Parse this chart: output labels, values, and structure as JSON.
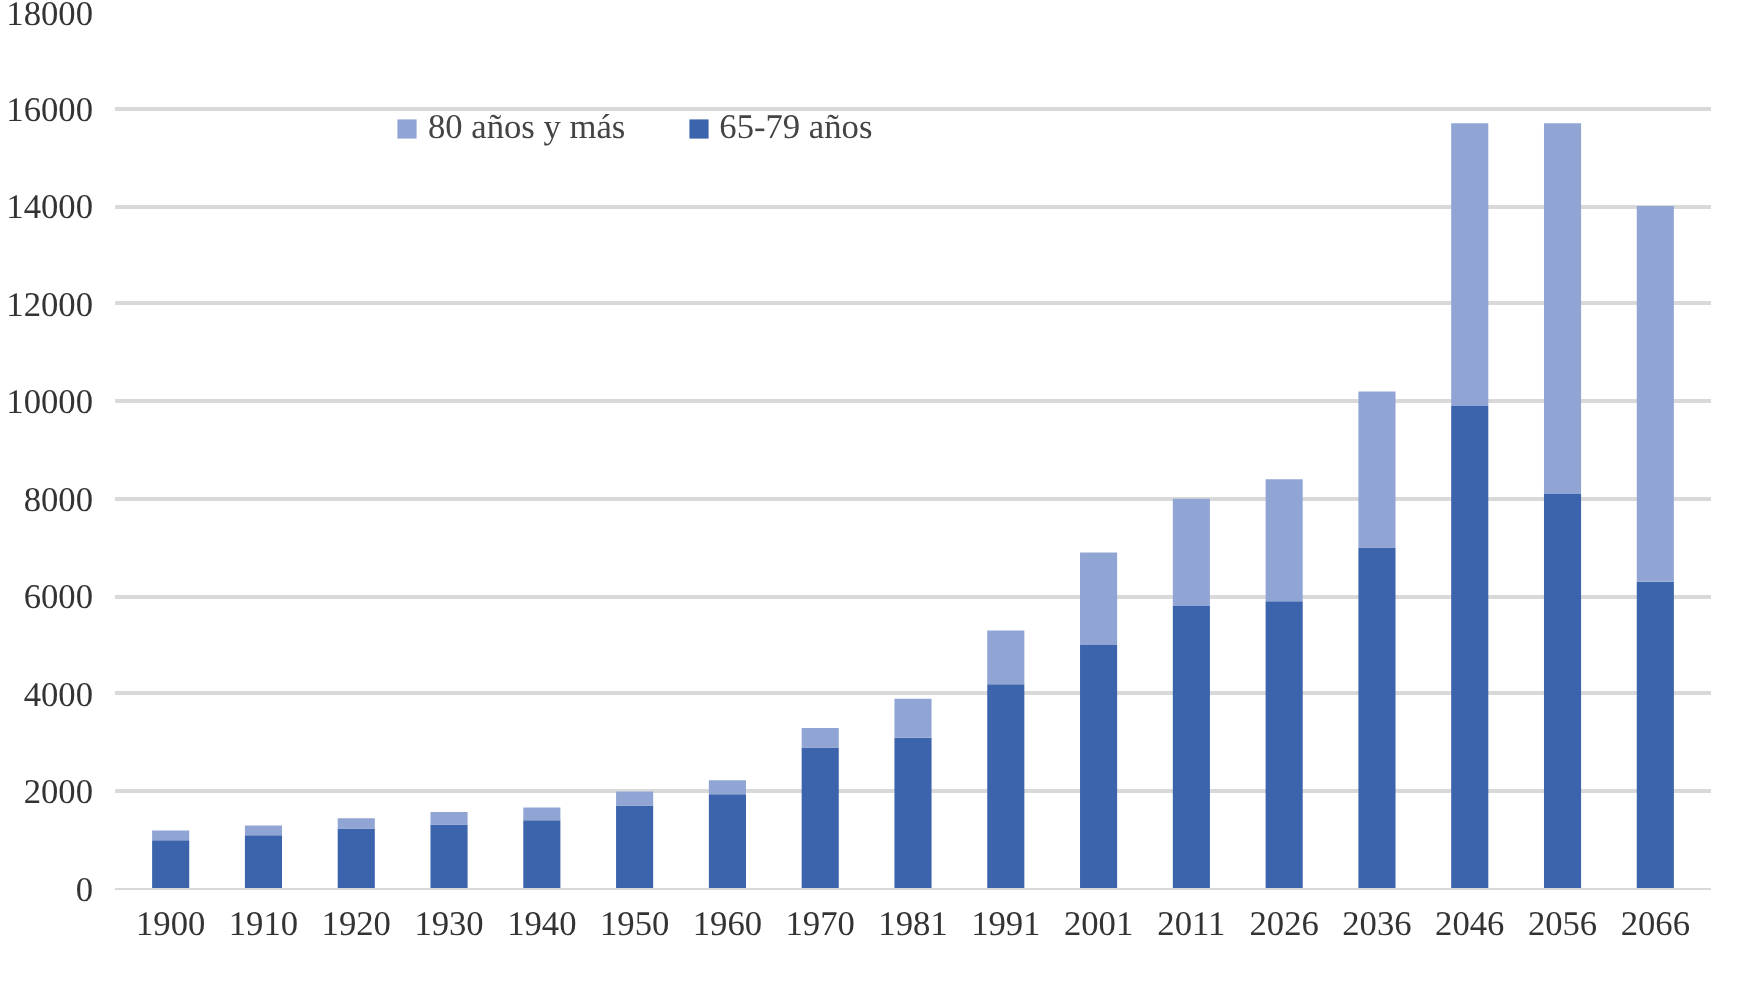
{
  "chart_data": {
    "type": "bar",
    "stacked": true,
    "categories": [
      "1900",
      "1910",
      "1920",
      "1930",
      "1940",
      "1950",
      "1960",
      "1970",
      "1981",
      "1991",
      "2001",
      "2011",
      "2026",
      "2036",
      "2046",
      "2056",
      "2066"
    ],
    "series": [
      {
        "name": "65-79 años",
        "color": "#3c64ac",
        "values": [
          1000,
          1100,
          1240,
          1320,
          1410,
          1710,
          1940,
          2900,
          3100,
          4200,
          5000,
          5800,
          5900,
          7000,
          9900,
          8100,
          6300
        ]
      },
      {
        "name": "80 años y más",
        "color": "#91a5d5",
        "values": [
          200,
          200,
          210,
          260,
          260,
          290,
          290,
          400,
          800,
          1100,
          1900,
          2200,
          2500,
          3200,
          5800,
          7600,
          7700
        ]
      }
    ],
    "ylim": [
      0,
      18000
    ],
    "yticks": [
      0,
      2000,
      4000,
      6000,
      8000,
      10000,
      12000,
      14000,
      16000,
      18000
    ],
    "grid": "y",
    "legend": "top"
  }
}
